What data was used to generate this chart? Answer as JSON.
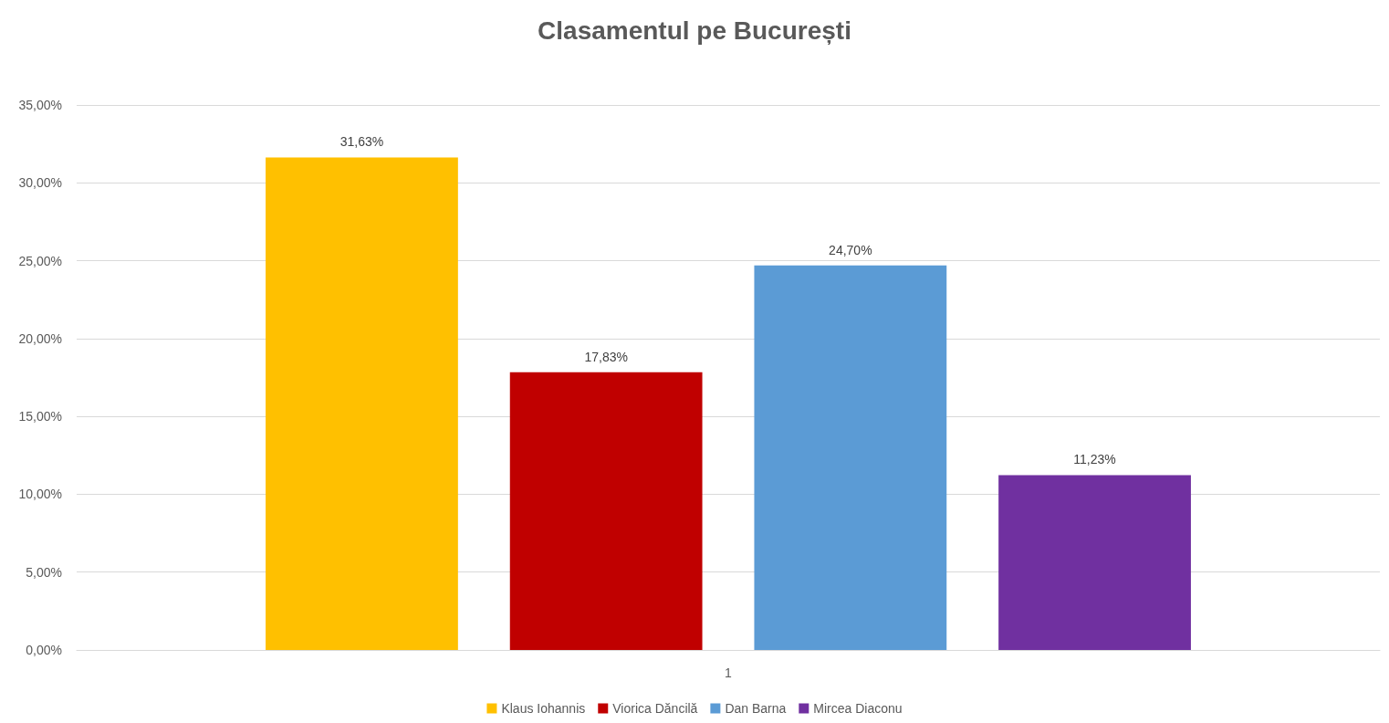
{
  "chart_data": {
    "type": "bar",
    "title": "Clasamentul pe București",
    "categories": [
      "1"
    ],
    "series": [
      {
        "name": "Klaus Iohannis",
        "color": "#ffc000",
        "values": [
          31.63
        ],
        "value_labels": [
          "31,63%"
        ]
      },
      {
        "name": "Viorica Dăncilă",
        "color": "#c00000",
        "values": [
          17.83
        ],
        "value_labels": [
          "17,83%"
        ]
      },
      {
        "name": "Dan Barna",
        "color": "#5b9bd5",
        "values": [
          24.7
        ],
        "value_labels": [
          "24,70%"
        ]
      },
      {
        "name": "Mircea Diaconu",
        "color": "#7030a0",
        "values": [
          11.23
        ],
        "value_labels": [
          "11,23%"
        ]
      }
    ],
    "ylim": [
      0,
      35
    ],
    "yticks": [
      {
        "value": 0,
        "label": "0,00%"
      },
      {
        "value": 5,
        "label": "5,00%"
      },
      {
        "value": 10,
        "label": "10,00%"
      },
      {
        "value": 15,
        "label": "15,00%"
      },
      {
        "value": 20,
        "label": "20,00%"
      },
      {
        "value": 25,
        "label": "25,00%"
      },
      {
        "value": 30,
        "label": "30,00%"
      },
      {
        "value": 35,
        "label": "35,00%"
      }
    ],
    "grid": "y",
    "legend": "bottom"
  }
}
